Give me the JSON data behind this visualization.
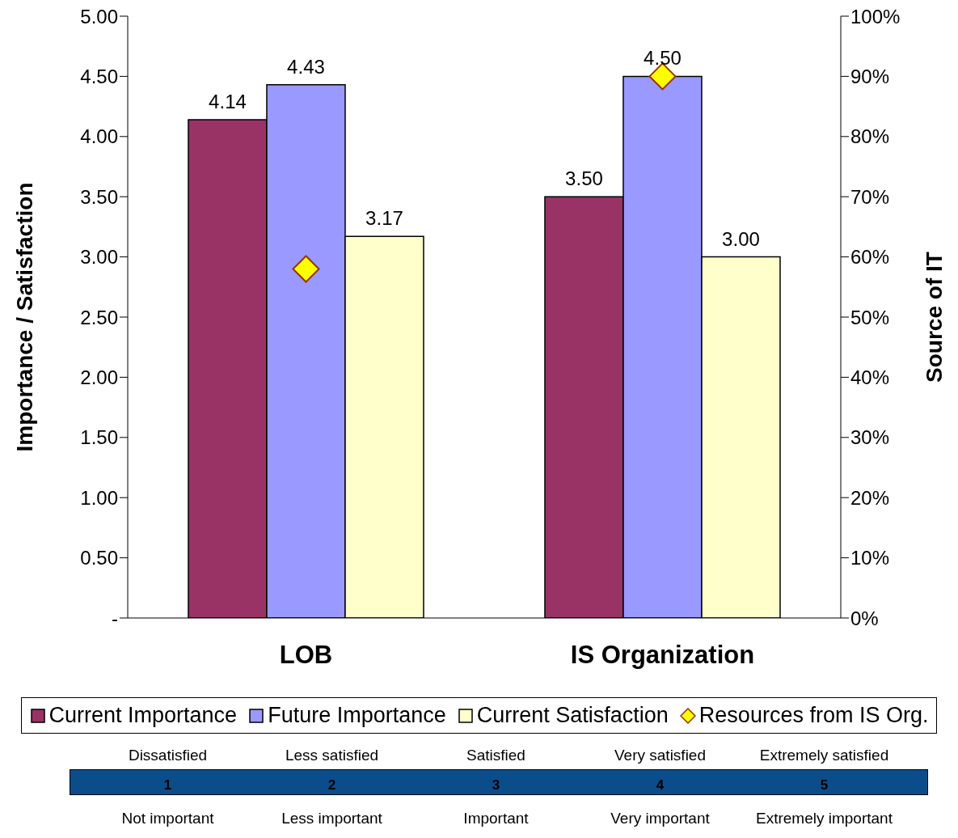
{
  "chart_data": {
    "type": "bar",
    "categories": [
      "LOB",
      "IS Organization"
    ],
    "ylabel": "Importance / Satisfaction",
    "y2label": "Source of IT",
    "ylim": [
      0,
      5
    ],
    "yticks": [
      {
        "value": 0,
        "label": "-"
      },
      {
        "value": 0.5,
        "label": "0.50"
      },
      {
        "value": 1,
        "label": "1.00"
      },
      {
        "value": 1.5,
        "label": "1.50"
      },
      {
        "value": 2,
        "label": "2.00"
      },
      {
        "value": 2.5,
        "label": "2.50"
      },
      {
        "value": 3,
        "label": "3.00"
      },
      {
        "value": 3.5,
        "label": "3.50"
      },
      {
        "value": 4,
        "label": "4.00"
      },
      {
        "value": 4.5,
        "label": "4.50"
      },
      {
        "value": 5,
        "label": "5.00"
      }
    ],
    "y2lim": [
      0,
      100
    ],
    "y2ticks": [
      {
        "value": 0,
        "label": "0%"
      },
      {
        "value": 10,
        "label": "10%"
      },
      {
        "value": 20,
        "label": "20%"
      },
      {
        "value": 30,
        "label": "30%"
      },
      {
        "value": 40,
        "label": "40%"
      },
      {
        "value": 50,
        "label": "50%"
      },
      {
        "value": 60,
        "label": "60%"
      },
      {
        "value": 70,
        "label": "70%"
      },
      {
        "value": 80,
        "label": "80%"
      },
      {
        "value": 90,
        "label": "90%"
      },
      {
        "value": 100,
        "label": "100%"
      }
    ],
    "series": [
      {
        "name": "Current Importance",
        "color": "#993366",
        "values": [
          4.14,
          3.5
        ],
        "value_labels": [
          "4.14",
          "3.50"
        ]
      },
      {
        "name": "Future Importance",
        "color": "#9999ff",
        "values": [
          4.43,
          4.5
        ],
        "value_labels": [
          "4.43",
          "4.50"
        ]
      },
      {
        "name": "Current Satisfaction",
        "color": "#ffffcc",
        "values": [
          3.17,
          3.0
        ],
        "value_labels": [
          "3.17",
          "3.00"
        ]
      },
      {
        "name": "Resources from IS Org.",
        "type": "scatter",
        "axis": "y2",
        "marker": "diamond",
        "color": "#ffff00",
        "values": [
          58,
          90
        ]
      }
    ],
    "legend": "bottom",
    "annotations": [
      "Dissatisfied",
      "Less satisfied",
      "Satisfied",
      "Very satisfied",
      "Extremely satisfied",
      "1",
      "2",
      "3",
      "4",
      "5",
      "Not important",
      "Less important",
      "Important",
      "Very important",
      "Extremely important"
    ]
  }
}
